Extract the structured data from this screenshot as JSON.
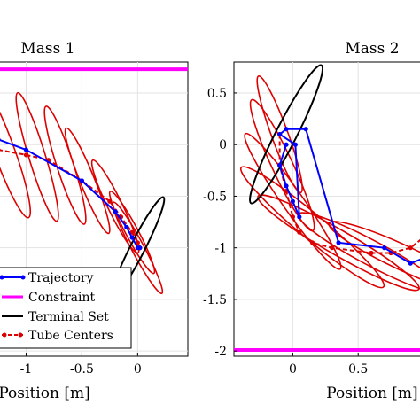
{
  "chart_data": [
    {
      "type": "line",
      "title": "Mass 1",
      "xlabel": "Position [m]",
      "ylabel": "",
      "xlim": [
        -1.25,
        0.45
      ],
      "ylim": [
        -2.05,
        0.8
      ],
      "xticks": [
        -1,
        -0.5,
        0
      ],
      "xtick_labels": [
        "-1",
        "-0.5",
        "0"
      ],
      "grid": true,
      "constraint_y": 0.73,
      "colors": {
        "trajectory": "#0000ff",
        "constraint": "#ff00ff",
        "terminal": "#000000",
        "tube": "#dd0000"
      },
      "series": [
        {
          "name": "Trajectory",
          "style": "solid-dots",
          "x": [
            -1.25,
            -1.0,
            -0.5,
            -0.2,
            -0.1,
            -0.05,
            0,
            0.02
          ],
          "y": [
            0.05,
            -0.05,
            -0.35,
            -0.65,
            -0.8,
            -0.9,
            -1.0,
            -1.0
          ]
        },
        {
          "name": "Tube Centers",
          "style": "dashed-dots",
          "x": [
            -1.25,
            -1.0,
            -0.8,
            -0.5,
            -0.25,
            -0.15,
            -0.05,
            0,
            0.02
          ],
          "y": [
            -0.05,
            -0.1,
            -0.15,
            -0.35,
            -0.55,
            -0.7,
            -0.85,
            -0.95,
            -1.0
          ]
        }
      ],
      "terminal_set": {
        "cx": 0.0,
        "cy": -1.0,
        "rx": 0.55,
        "ry": 0.07,
        "angle": -63
      },
      "tube_ellipses": [
        {
          "cx": -1.2,
          "cy": -0.05,
          "rx": 0.7,
          "ry": 0.1,
          "angle": 70
        },
        {
          "cx": -0.9,
          "cy": -0.12,
          "rx": 0.65,
          "ry": 0.08,
          "angle": 73
        },
        {
          "cx": -0.65,
          "cy": -0.2,
          "rx": 0.6,
          "ry": 0.08,
          "angle": 72
        },
        {
          "cx": -0.45,
          "cy": -0.35,
          "rx": 0.55,
          "ry": 0.07,
          "angle": 68
        },
        {
          "cx": -0.2,
          "cy": -0.6,
          "rx": 0.5,
          "ry": 0.07,
          "angle": 64
        },
        {
          "cx": -0.05,
          "cy": -0.85,
          "rx": 0.45,
          "ry": 0.06,
          "angle": 62
        },
        {
          "cx": 0.0,
          "cy": -1.0,
          "rx": 0.5,
          "ry": 0.06,
          "angle": 62
        }
      ],
      "legend": {
        "placement": "bottom-left",
        "entries": [
          "Trajectory",
          "Constraint",
          "Terminal Set",
          "Tube Centers"
        ]
      }
    },
    {
      "type": "line",
      "title": "Mass 2",
      "xlabel": "Position [m]",
      "ylabel": "",
      "xlim": [
        -0.45,
        1.0
      ],
      "ylim": [
        -2.05,
        0.8
      ],
      "xticks": [
        0,
        0.5
      ],
      "xtick_labels": [
        "0",
        "0.5"
      ],
      "yticks": [
        0.5,
        0,
        -0.5,
        -1,
        -1.5,
        -2
      ],
      "ytick_labels": [
        "0.5",
        "0",
        "-0.5",
        "-1",
        "-1.5",
        "-2"
      ],
      "grid": true,
      "constraint_y": -1.99,
      "series": [
        {
          "name": "Trajectory",
          "style": "solid-dots",
          "x": [
            -0.05,
            -0.1,
            -0.05,
            0,
            0.05,
            0.02,
            -0.1,
            -0.05,
            0.1,
            0.35,
            0.7,
            0.9,
            1.0
          ],
          "y": [
            0.0,
            -0.2,
            -0.4,
            -0.55,
            -0.7,
            0.0,
            0.1,
            0.15,
            0.15,
            -0.95,
            -1.0,
            -1.15,
            -1.1
          ]
        },
        {
          "name": "Tube Centers",
          "style": "dashed-dots",
          "x": [
            -0.1,
            -0.1,
            -0.05,
            0,
            0.05,
            0.15,
            0.3,
            0.6,
            0.75,
            0.9,
            1.0
          ],
          "y": [
            0.1,
            -0.2,
            -0.45,
            -0.7,
            -0.85,
            -0.95,
            -1.0,
            -1.05,
            -1.05,
            -1.0,
            -0.9
          ]
        }
      ],
      "terminal_set": {
        "cx": -0.05,
        "cy": 0.1,
        "rx": 0.75,
        "ry": 0.1,
        "angle": -63
      },
      "tube_ellipses": [
        {
          "cx": -0.1,
          "cy": 0.1,
          "rx": 0.6,
          "ry": 0.08,
          "angle": 70
        },
        {
          "cx": -0.08,
          "cy": -0.2,
          "rx": 0.7,
          "ry": 0.1,
          "angle": 65
        },
        {
          "cx": 0.0,
          "cy": -0.55,
          "rx": 0.8,
          "ry": 0.1,
          "angle": 55
        },
        {
          "cx": 0.15,
          "cy": -0.8,
          "rx": 0.9,
          "ry": 0.12,
          "angle": 40
        },
        {
          "cx": 0.35,
          "cy": -0.95,
          "rx": 0.9,
          "ry": 0.12,
          "angle": 30
        },
        {
          "cx": 0.6,
          "cy": -1.05,
          "rx": 0.8,
          "ry": 0.12,
          "angle": 28
        },
        {
          "cx": 0.85,
          "cy": -1.1,
          "rx": 0.8,
          "ry": 0.12,
          "angle": 25
        }
      ]
    }
  ]
}
